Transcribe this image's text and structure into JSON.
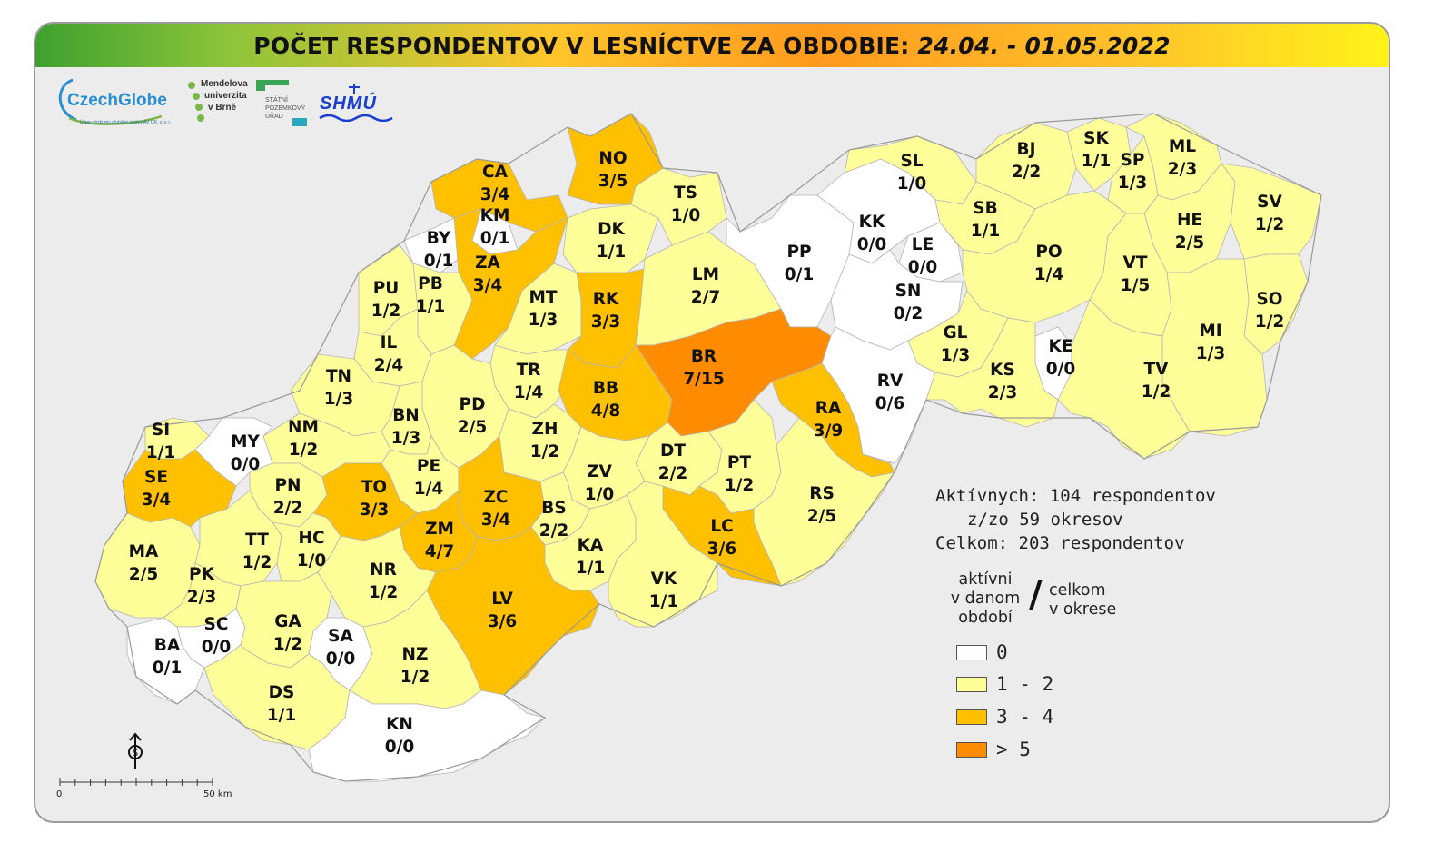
{
  "title": {
    "main": "POČET RESPONDENTOV V LESNÍCTVE ZA OBDOBIE:",
    "period": "24.04. - 01.05.2022"
  },
  "logos": {
    "czechglobe": "CzechGlobe",
    "czechglobe_sub": "Ústav výzkumu globální změny AV ČR, v. v. i.",
    "mendelu": [
      "Mendelova",
      "univerzita",
      "v Brně"
    ],
    "spu": [
      "STÁTNÍ",
      "POZEMKOVÝ",
      "ÚŘAD"
    ],
    "shmu": "SHMÚ"
  },
  "colors": {
    "zero": "#ffffff",
    "low": "#ffff99",
    "mid": "#ffc000",
    "high": "#ff8c00",
    "title_green": "#3fa02f",
    "title_orange": "#ff9a1e",
    "title_yellow": "#fff31a"
  },
  "districts": [
    {
      "code": "CA",
      "value": "3/4",
      "cls": "mid"
    },
    {
      "code": "NO",
      "value": "3/5",
      "cls": "mid"
    },
    {
      "code": "KM",
      "value": "0/1",
      "cls": "zero"
    },
    {
      "code": "BY",
      "value": "0/1",
      "cls": "zero"
    },
    {
      "code": "ZA",
      "value": "3/4",
      "cls": "mid"
    },
    {
      "code": "DK",
      "value": "1/1",
      "cls": "low"
    },
    {
      "code": "TS",
      "value": "1/0",
      "cls": "low"
    },
    {
      "code": "PU",
      "value": "1/2",
      "cls": "low"
    },
    {
      "code": "PB",
      "value": "1/1",
      "cls": "low"
    },
    {
      "code": "MT",
      "value": "1/3",
      "cls": "low"
    },
    {
      "code": "RK",
      "value": "3/3",
      "cls": "mid"
    },
    {
      "code": "LM",
      "value": "2/7",
      "cls": "low"
    },
    {
      "code": "PP",
      "value": "0/1",
      "cls": "zero"
    },
    {
      "code": "KK",
      "value": "0/0",
      "cls": "zero"
    },
    {
      "code": "LE",
      "value": "0/0",
      "cls": "zero"
    },
    {
      "code": "SN",
      "value": "0/2",
      "cls": "zero"
    },
    {
      "code": "SL",
      "value": "1/0",
      "cls": "low"
    },
    {
      "code": "BJ",
      "value": "2/2",
      "cls": "low"
    },
    {
      "code": "SK",
      "value": "1/1",
      "cls": "low"
    },
    {
      "code": "SP",
      "value": "1/3",
      "cls": "low"
    },
    {
      "code": "ML",
      "value": "2/3",
      "cls": "low"
    },
    {
      "code": "SB",
      "value": "1/1",
      "cls": "low"
    },
    {
      "code": "HE",
      "value": "2/5",
      "cls": "low"
    },
    {
      "code": "SV",
      "value": "1/2",
      "cls": "low"
    },
    {
      "code": "PO",
      "value": "1/4",
      "cls": "low"
    },
    {
      "code": "VT",
      "value": "1/5",
      "cls": "low"
    },
    {
      "code": "SO",
      "value": "1/2",
      "cls": "low"
    },
    {
      "code": "IL",
      "value": "2/4",
      "cls": "low"
    },
    {
      "code": "TN",
      "value": "1/3",
      "cls": "low"
    },
    {
      "code": "TR",
      "value": "1/4",
      "cls": "low"
    },
    {
      "code": "BR",
      "value": "7/15",
      "cls": "high"
    },
    {
      "code": "GL",
      "value": "1/3",
      "cls": "low"
    },
    {
      "code": "KE",
      "value": "0/0",
      "cls": "zero"
    },
    {
      "code": "MI",
      "value": "1/3",
      "cls": "low"
    },
    {
      "code": "BB",
      "value": "4/8",
      "cls": "mid"
    },
    {
      "code": "RA",
      "value": "3/9",
      "cls": "mid"
    },
    {
      "code": "RV",
      "value": "0/6",
      "cls": "zero"
    },
    {
      "code": "KS",
      "value": "2/3",
      "cls": "low"
    },
    {
      "code": "TV",
      "value": "1/2",
      "cls": "low"
    },
    {
      "code": "PD",
      "value": "2/5",
      "cls": "low"
    },
    {
      "code": "BN",
      "value": "1/3",
      "cls": "low"
    },
    {
      "code": "NM",
      "value": "1/2",
      "cls": "low"
    },
    {
      "code": "SI",
      "value": "1/1",
      "cls": "low"
    },
    {
      "code": "MY",
      "value": "0/0",
      "cls": "zero"
    },
    {
      "code": "ZH",
      "value": "1/2",
      "cls": "low"
    },
    {
      "code": "SE",
      "value": "3/4",
      "cls": "mid"
    },
    {
      "code": "DT",
      "value": "2/2",
      "cls": "low"
    },
    {
      "code": "PT",
      "value": "1/2",
      "cls": "low"
    },
    {
      "code": "PE",
      "value": "1/4",
      "cls": "low"
    },
    {
      "code": "ZV",
      "value": "1/0",
      "cls": "low"
    },
    {
      "code": "PN",
      "value": "2/2",
      "cls": "low"
    },
    {
      "code": "TO",
      "value": "3/3",
      "cls": "mid"
    },
    {
      "code": "ZC",
      "value": "3/4",
      "cls": "mid"
    },
    {
      "code": "BS",
      "value": "2/2",
      "cls": "low"
    },
    {
      "code": "RS",
      "value": "2/5",
      "cls": "low"
    },
    {
      "code": "ZM",
      "value": "4/7",
      "cls": "mid"
    },
    {
      "code": "LC",
      "value": "3/6",
      "cls": "mid"
    },
    {
      "code": "MA",
      "value": "2/5",
      "cls": "low"
    },
    {
      "code": "TT",
      "value": "1/2",
      "cls": "low"
    },
    {
      "code": "HC",
      "value": "1/0",
      "cls": "low"
    },
    {
      "code": "KA",
      "value": "1/1",
      "cls": "low"
    },
    {
      "code": "NR",
      "value": "1/2",
      "cls": "low"
    },
    {
      "code": "PK",
      "value": "2/3",
      "cls": "low"
    },
    {
      "code": "VK",
      "value": "1/1",
      "cls": "low"
    },
    {
      "code": "LV",
      "value": "3/6",
      "cls": "mid"
    },
    {
      "code": "SC",
      "value": "0/0",
      "cls": "zero"
    },
    {
      "code": "GA",
      "value": "1/2",
      "cls": "low"
    },
    {
      "code": "SA",
      "value": "0/0",
      "cls": "zero"
    },
    {
      "code": "BA",
      "value": "0/1",
      "cls": "zero"
    },
    {
      "code": "NZ",
      "value": "1/2",
      "cls": "low"
    },
    {
      "code": "DS",
      "value": "1/1",
      "cls": "low"
    },
    {
      "code": "KN",
      "value": "0/0",
      "cls": "zero"
    }
  ],
  "summary": {
    "line1": "Aktívnych: 104 respondentov",
    "line2": "z/zo 59 okresov",
    "line3": "Celkom: 203 respondentov"
  },
  "legend": {
    "active_label": [
      "aktívni",
      "v danom",
      "období"
    ],
    "slash": "/",
    "total_label": [
      "celkom",
      "v okrese"
    ],
    "items": [
      {
        "label": "0",
        "color": "#ffffff"
      },
      {
        "label": "1 - 2",
        "color": "#ffff99"
      },
      {
        "label": "3 - 4",
        "color": "#ffc000"
      },
      {
        "label": "> 5",
        "color": "#ff8c00"
      }
    ]
  },
  "scale": {
    "start": "0",
    "end": "50 km"
  }
}
